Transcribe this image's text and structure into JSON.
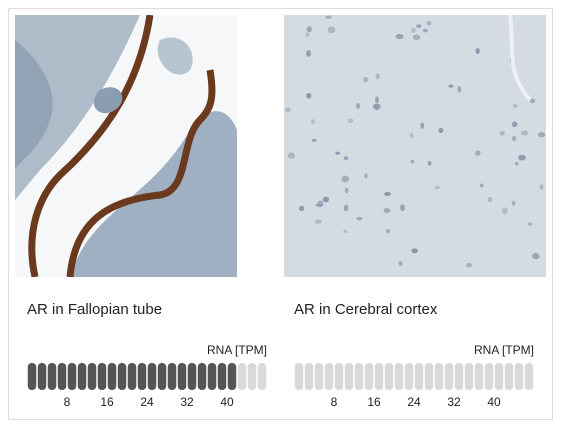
{
  "panels": [
    {
      "title": "AR in Fallopian tube",
      "scale_label": "RNA [TPM]",
      "value": 42,
      "max": 48,
      "ticks": [
        8,
        16,
        24,
        32,
        40
      ],
      "fill_color": "#555555"
    },
    {
      "title": "AR in Cerebral cortex",
      "scale_label": "RNA [TPM]",
      "value": 0,
      "max": 48,
      "ticks": [
        8,
        16,
        24,
        32,
        40
      ],
      "fill_color": "#555555"
    }
  ]
}
